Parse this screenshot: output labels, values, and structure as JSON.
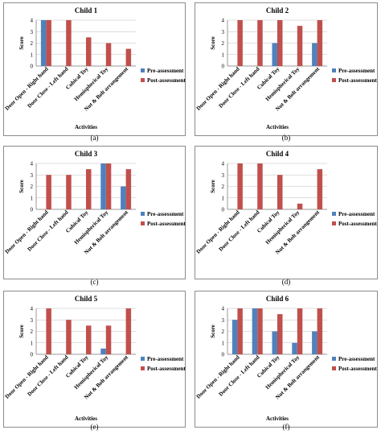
{
  "colors": {
    "pre": "#4f81bd",
    "post": "#c0504d",
    "axis": "#808080",
    "grid": "#bfbfbf"
  },
  "categories": [
    "Door Open - Right hand",
    "Door Close - Left hand",
    "Cubical Toy",
    "Hemispherical Toy",
    "Nut & Bolt arrangement"
  ],
  "legend": {
    "pre": "Pre-assessment",
    "post": "Post-assessment"
  },
  "chart_data": [
    {
      "type": "bar",
      "title": "Child 1",
      "caption": "(a)",
      "xlabel": "Activities",
      "ylabel": "Score",
      "ylim": [
        0,
        4
      ],
      "yticks": [
        0,
        1,
        2,
        3,
        4
      ],
      "legend_position": "right",
      "categories": [
        "Door Open - Right hand",
        "Door Close - Left hand",
        "Cubical Toy",
        "Hemispherical Toy",
        "Nut & Bolt arrangement"
      ],
      "series": [
        {
          "name": "Pre-assessment",
          "values": [
            4,
            0,
            0,
            0,
            0
          ]
        },
        {
          "name": "Post-assessment",
          "values": [
            4,
            4,
            2.5,
            2,
            1.5
          ]
        }
      ]
    },
    {
      "type": "bar",
      "title": "Child 2",
      "caption": "(b)",
      "xlabel": "Activities",
      "ylabel": "Score",
      "ylim": [
        0,
        4
      ],
      "yticks": [
        0,
        1,
        2,
        3,
        4
      ],
      "legend_position": "right",
      "categories": [
        "Door Open - Right hand",
        "Door Close - Left hand",
        "Cubical Toy",
        "Hemispherical Toy",
        "Nut & Bolt arrangement"
      ],
      "series": [
        {
          "name": "Pre-assessment",
          "values": [
            0,
            0,
            2,
            0,
            2
          ]
        },
        {
          "name": "Post-assessment",
          "values": [
            4,
            4,
            4,
            3.5,
            4
          ]
        }
      ]
    },
    {
      "type": "bar",
      "title": "Child 3",
      "caption": "(c)",
      "xlabel": "",
      "ylabel": "Score",
      "ylim": [
        0,
        4
      ],
      "yticks": [
        0,
        1,
        2,
        3,
        4
      ],
      "legend_position": "right",
      "categories": [
        "Door Open - Right hand",
        "Door Close - Left hand",
        "Cubical Toy",
        "Hemispherical Toy",
        "Nut & Bolt arrangement"
      ],
      "series": [
        {
          "name": "Pre-assessment",
          "values": [
            0,
            0,
            0,
            4,
            2
          ]
        },
        {
          "name": "Post-assessment",
          "values": [
            3,
            3,
            3.5,
            4,
            3.5
          ]
        }
      ]
    },
    {
      "type": "bar",
      "title": "Child 4",
      "caption": "(d)",
      "xlabel": "",
      "ylabel": "Score",
      "ylim": [
        0,
        4
      ],
      "yticks": [
        0,
        1,
        2,
        3,
        4
      ],
      "legend_position": "right",
      "categories": [
        "Door Open - Right hand",
        "Door Close - Left hand",
        "Cubical Toy",
        "Hemispherical Toy",
        "Nut & Bolt arrangement"
      ],
      "series": [
        {
          "name": "Pre-assessment",
          "values": [
            0,
            0,
            0,
            0,
            0
          ]
        },
        {
          "name": "Post-assessment",
          "values": [
            4,
            4,
            3,
            0.5,
            3.5
          ]
        }
      ]
    },
    {
      "type": "bar",
      "title": "Child 5",
      "caption": "(e)",
      "xlabel": "Activities",
      "ylabel": "Score",
      "ylim": [
        0,
        4
      ],
      "yticks": [
        0,
        1,
        2,
        3,
        4
      ],
      "legend_position": "right",
      "categories": [
        "Door Open - Right hand",
        "Door Close - Left hand",
        "Cubical Toy",
        "Hemispherical Toy",
        "Nut & Bolt arrangement"
      ],
      "series": [
        {
          "name": "Pre-assessment",
          "values": [
            0,
            0,
            0,
            0.5,
            0
          ]
        },
        {
          "name": "Post-assessment",
          "values": [
            4,
            3,
            2.5,
            2.5,
            4
          ]
        }
      ]
    },
    {
      "type": "bar",
      "title": "Child 6",
      "caption": "(f)",
      "xlabel": "Activities",
      "ylabel": "Score",
      "ylim": [
        0,
        4
      ],
      "yticks": [
        0,
        1,
        2,
        3,
        4
      ],
      "legend_position": "right",
      "categories": [
        "Door Open - Right hand",
        "Door Close - Left hand",
        "Cubical Toy",
        "Hemispherical Toy",
        "Nut & Bolt arrangement"
      ],
      "series": [
        {
          "name": "Pre-assessment",
          "values": [
            3,
            4,
            2,
            1,
            2
          ]
        },
        {
          "name": "Post-assessment",
          "values": [
            4,
            4,
            3.5,
            4,
            4
          ]
        }
      ]
    }
  ]
}
